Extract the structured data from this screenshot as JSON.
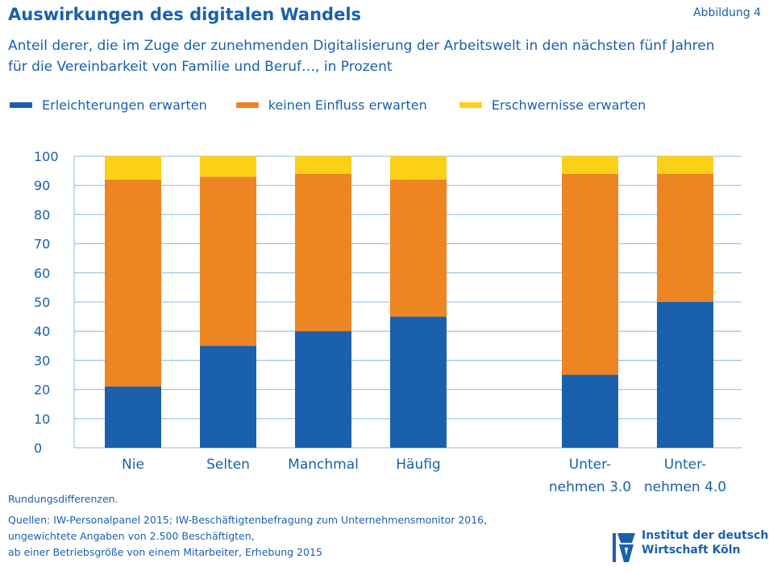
{
  "header": {
    "title": "Auswirkungen des digitalen Wandels",
    "figure_label": "Abbildung 4",
    "subtitle": "Anteil derer, die im Zuge der zunehmenden Digitalisierung der Arbeitswelt in den nächsten fünf Jahren für die Vereinbarkeit von Familie und Beruf…, in Prozent"
  },
  "legend": [
    {
      "label": "Erleichterungen erwarten",
      "color": "#1a60ad"
    },
    {
      "label": "keinen Einfluss erwarten",
      "color": "#ed8522"
    },
    {
      "label": "Erschwernisse erwarten",
      "color": "#fdd018"
    }
  ],
  "chart_data": {
    "type": "bar",
    "stacked": true,
    "categories": [
      [
        "Nie"
      ],
      [
        "Selten"
      ],
      [
        "Manchmal"
      ],
      [
        "Häufig"
      ],
      [
        "Unter-",
        "nehmen 3.0"
      ],
      [
        "Unter-",
        "nehmen 4.0"
      ]
    ],
    "series": [
      {
        "name": "Erleichterungen erwarten",
        "color": "#1a60ad",
        "values": [
          21,
          35,
          40,
          45,
          25,
          50
        ]
      },
      {
        "name": "keinen Einfluss erwarten",
        "color": "#ed8522",
        "values": [
          71,
          58,
          54,
          47,
          69,
          44
        ]
      },
      {
        "name": "Erschwernisse erwarten",
        "color": "#fdd018",
        "values": [
          8,
          7,
          6,
          8,
          6,
          6
        ]
      }
    ],
    "ylim": [
      0,
      100
    ],
    "yticks": [
      0,
      10,
      20,
      30,
      40,
      50,
      60,
      70,
      80,
      90,
      100
    ],
    "grid": true,
    "gridline_color": "#8fb8e0"
  },
  "footer": {
    "note": "Rundungsdifferenzen.",
    "sources": [
      "Quellen: IW-Personalpanel 2015; IW-Beschäftigtenbefragung zum Unternehmensmonitor 2016,",
      "ungewichtete Angaben von 2.500 Beschäftigten,",
      "ab einer Betriebsgröße von einem Mitarbeiter, Erhebung 2015"
    ]
  },
  "logo": {
    "lines": [
      "Institut der deutschen",
      "Wirtschaft Köln"
    ]
  }
}
